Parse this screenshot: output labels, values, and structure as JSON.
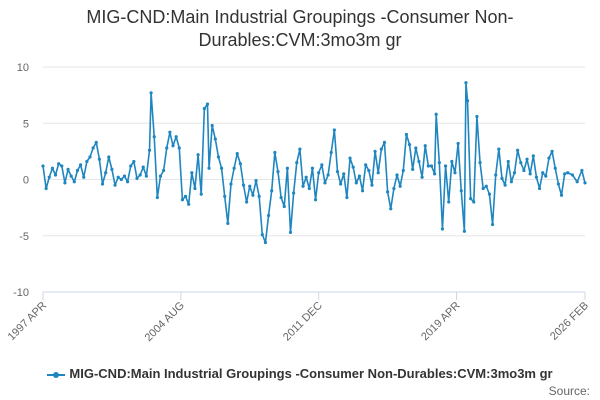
{
  "colors": {
    "series": "#1f86c0",
    "grid": "#e6e6e6",
    "axis": "#ccd6eb",
    "text": "#333333",
    "tick_text": "#666666"
  },
  "legend_text": "MIG-CND:Main Industrial Groupings -Consumer Non-Durables:CVM:3mo3m gr",
  "source_label": "Source:",
  "chart_data": {
    "type": "line",
    "title": "MIG-CND:Main Industrial Groupings -Consumer Non-Durables:CVM:3mo3m gr",
    "title_lines": [
      "MIG-CND:Main Industrial Groupings -Consumer Non-",
      "Durables:CVM:3mo3m gr"
    ],
    "xlabel": "",
    "ylabel": "",
    "ylim": [
      -10,
      10
    ],
    "yticks": [
      -10,
      -5,
      0,
      5,
      10
    ],
    "xlim": [
      "1997-04",
      "2026-02"
    ],
    "xticks": [
      "1997-04",
      "2004-08",
      "2011-12",
      "2019-04",
      "2026-02"
    ],
    "xtick_labels": [
      "1997 APR",
      "2004 AUG",
      "2011 DEC",
      "2019 APR",
      "2026 FEB"
    ],
    "grid": true,
    "legend_position": "bottom",
    "series": [
      {
        "name": "MIG-CND:Main Industrial Groupings -Consumer Non-Durables:CVM:3mo3m gr",
        "points": [
          [
            "1997-04",
            1.2
          ],
          [
            "1997-06",
            -0.8
          ],
          [
            "1997-08",
            0.2
          ],
          [
            "1997-10",
            1.0
          ],
          [
            "1997-12",
            0.4
          ],
          [
            "1998-02",
            1.4
          ],
          [
            "1998-04",
            1.2
          ],
          [
            "1998-06",
            -0.3
          ],
          [
            "1998-08",
            0.9
          ],
          [
            "1998-10",
            0.3
          ],
          [
            "1998-12",
            -0.2
          ],
          [
            "1999-02",
            0.8
          ],
          [
            "1999-04",
            1.3
          ],
          [
            "1999-06",
            0.2
          ],
          [
            "1999-08",
            1.6
          ],
          [
            "1999-10",
            2.0
          ],
          [
            "1999-12",
            2.8
          ],
          [
            "2000-02",
            3.3
          ],
          [
            "2000-04",
            1.8
          ],
          [
            "2000-06",
            -0.4
          ],
          [
            "2000-08",
            0.6
          ],
          [
            "2000-10",
            2.0
          ],
          [
            "2000-12",
            0.9
          ],
          [
            "2001-02",
            -0.5
          ],
          [
            "2001-04",
            0.2
          ],
          [
            "2001-06",
            0.0
          ],
          [
            "2001-08",
            0.3
          ],
          [
            "2001-10",
            -0.2
          ],
          [
            "2001-12",
            1.2
          ],
          [
            "2002-02",
            1.6
          ],
          [
            "2002-04",
            0.1
          ],
          [
            "2002-06",
            0.4
          ],
          [
            "2002-08",
            1.1
          ],
          [
            "2002-10",
            0.3
          ],
          [
            "2002-12",
            2.6
          ],
          [
            "2003-01",
            7.7
          ],
          [
            "2003-03",
            3.8
          ],
          [
            "2003-05",
            -1.6
          ],
          [
            "2003-07",
            0.3
          ],
          [
            "2003-09",
            0.8
          ],
          [
            "2003-11",
            2.8
          ],
          [
            "2004-01",
            4.2
          ],
          [
            "2004-03",
            3.0
          ],
          [
            "2004-05",
            3.8
          ],
          [
            "2004-07",
            2.8
          ],
          [
            "2004-09",
            -1.8
          ],
          [
            "2004-11",
            -1.5
          ],
          [
            "2005-01",
            -2.2
          ],
          [
            "2005-03",
            0.6
          ],
          [
            "2005-05",
            -0.8
          ],
          [
            "2005-07",
            2.2
          ],
          [
            "2005-09",
            -1.3
          ],
          [
            "2005-11",
            6.3
          ],
          [
            "2006-01",
            6.7
          ],
          [
            "2006-02",
            1.0
          ],
          [
            "2006-04",
            4.8
          ],
          [
            "2006-06",
            3.6
          ],
          [
            "2006-08",
            2.0
          ],
          [
            "2006-10",
            1.0
          ],
          [
            "2006-12",
            -1.5
          ],
          [
            "2007-02",
            -3.9
          ],
          [
            "2007-04",
            -0.4
          ],
          [
            "2007-06",
            1.0
          ],
          [
            "2007-08",
            2.3
          ],
          [
            "2007-10",
            1.4
          ],
          [
            "2007-12",
            -0.5
          ],
          [
            "2008-02",
            -2.0
          ],
          [
            "2008-04",
            -0.6
          ],
          [
            "2008-06",
            -1.4
          ],
          [
            "2008-08",
            -0.1
          ],
          [
            "2008-10",
            -1.5
          ],
          [
            "2008-12",
            -4.9
          ],
          [
            "2009-02",
            -5.6
          ],
          [
            "2009-04",
            -3.2
          ],
          [
            "2009-06",
            -1.0
          ],
          [
            "2009-08",
            2.4
          ],
          [
            "2009-10",
            0.7
          ],
          [
            "2009-12",
            -1.6
          ],
          [
            "2010-02",
            -2.4
          ],
          [
            "2010-04",
            1.0
          ],
          [
            "2010-06",
            -4.7
          ],
          [
            "2010-08",
            -1.2
          ],
          [
            "2010-10",
            1.5
          ],
          [
            "2010-12",
            2.7
          ],
          [
            "2011-02",
            -0.6
          ],
          [
            "2011-04",
            0.2
          ],
          [
            "2011-06",
            -0.8
          ],
          [
            "2011-08",
            1.0
          ],
          [
            "2011-10",
            -1.8
          ],
          [
            "2011-12",
            0.6
          ],
          [
            "2012-02",
            1.3
          ],
          [
            "2012-04",
            -0.3
          ],
          [
            "2012-06",
            0.4
          ],
          [
            "2012-08",
            2.4
          ],
          [
            "2012-10",
            4.4
          ],
          [
            "2012-12",
            0.7
          ],
          [
            "2013-02",
            -0.4
          ],
          [
            "2013-04",
            0.5
          ],
          [
            "2013-06",
            -1.6
          ],
          [
            "2013-08",
            1.9
          ],
          [
            "2013-10",
            1.1
          ],
          [
            "2013-12",
            -0.3
          ],
          [
            "2014-02",
            0.3
          ],
          [
            "2014-04",
            -1.0
          ],
          [
            "2014-06",
            1.3
          ],
          [
            "2014-08",
            0.8
          ],
          [
            "2014-10",
            -0.5
          ],
          [
            "2014-12",
            2.5
          ],
          [
            "2015-02",
            0.6
          ],
          [
            "2015-04",
            2.7
          ],
          [
            "2015-06",
            3.3
          ],
          [
            "2015-08",
            -1.1
          ],
          [
            "2015-10",
            -2.6
          ],
          [
            "2015-12",
            -0.8
          ],
          [
            "2016-02",
            0.4
          ],
          [
            "2016-04",
            -0.6
          ],
          [
            "2016-06",
            0.8
          ],
          [
            "2016-08",
            4.0
          ],
          [
            "2016-10",
            3.1
          ],
          [
            "2016-12",
            0.9
          ],
          [
            "2017-02",
            2.8
          ],
          [
            "2017-04",
            1.6
          ],
          [
            "2017-06",
            0.2
          ],
          [
            "2017-08",
            3.0
          ],
          [
            "2017-10",
            1.2
          ],
          [
            "2017-12",
            1.2
          ],
          [
            "2018-02",
            0.5
          ],
          [
            "2018-03",
            5.8
          ],
          [
            "2018-05",
            1.5
          ],
          [
            "2018-07",
            -4.4
          ],
          [
            "2018-09",
            1.2
          ],
          [
            "2018-11",
            -2.0
          ],
          [
            "2019-01",
            1.6
          ],
          [
            "2019-03",
            0.6
          ],
          [
            "2019-05",
            3.2
          ],
          [
            "2019-07",
            -1.0
          ],
          [
            "2019-09",
            -4.6
          ],
          [
            "2019-10",
            8.6
          ],
          [
            "2019-11",
            7.0
          ],
          [
            "2020-01",
            -1.7
          ],
          [
            "2020-03",
            -2.0
          ],
          [
            "2020-05",
            5.6
          ],
          [
            "2020-07",
            1.5
          ],
          [
            "2020-09",
            -0.8
          ],
          [
            "2020-11",
            -0.6
          ],
          [
            "2021-01",
            -1.3
          ],
          [
            "2021-03",
            -4.0
          ],
          [
            "2021-05",
            0.4
          ],
          [
            "2021-07",
            2.7
          ],
          [
            "2021-09",
            0.1
          ],
          [
            "2021-11",
            -0.5
          ],
          [
            "2022-01",
            1.6
          ],
          [
            "2022-03",
            -0.2
          ],
          [
            "2022-05",
            0.6
          ],
          [
            "2022-07",
            2.6
          ],
          [
            "2022-09",
            1.5
          ],
          [
            "2022-11",
            0.8
          ],
          [
            "2023-01",
            1.8
          ],
          [
            "2023-03",
            0.5
          ],
          [
            "2023-05",
            2.1
          ],
          [
            "2023-07",
            0.2
          ],
          [
            "2023-09",
            -0.8
          ],
          [
            "2023-11",
            0.6
          ],
          [
            "2024-01",
            0.3
          ],
          [
            "2024-03",
            1.9
          ],
          [
            "2024-05",
            2.5
          ],
          [
            "2024-07",
            1.0
          ],
          [
            "2024-09",
            -0.4
          ],
          [
            "2024-11",
            -1.4
          ],
          [
            "2025-01",
            0.5
          ],
          [
            "2025-03",
            0.6
          ],
          [
            "2025-06",
            0.4
          ],
          [
            "2025-09",
            -0.2
          ],
          [
            "2025-12",
            0.8
          ],
          [
            "2026-02",
            -0.3
          ]
        ]
      }
    ]
  }
}
